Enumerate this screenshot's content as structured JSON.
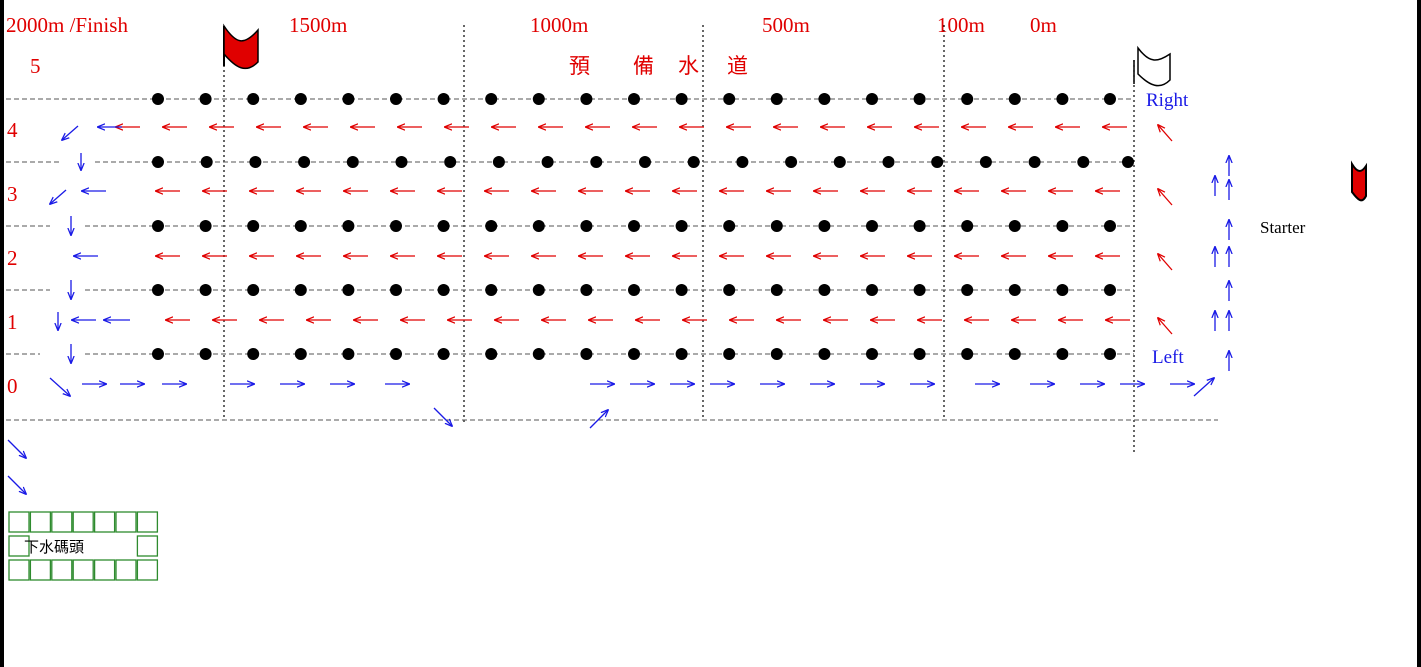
{
  "distance_markers": [
    "2000m /Finish",
    "1500m",
    "1000m",
    "500m",
    "100m",
    "0m"
  ],
  "lane5_label": "5",
  "reserve_lane_chars": [
    "預",
    "備",
    "水",
    "道"
  ],
  "lanes": [
    {
      "number": "4"
    },
    {
      "number": "3"
    },
    {
      "number": "2"
    },
    {
      "number": "1"
    },
    {
      "number": "0"
    }
  ],
  "side_labels": {
    "right": "Right",
    "left": "Left"
  },
  "starter_label": "Starter",
  "dock_label": "下水碼頭",
  "colors": {
    "red": "#e00000",
    "blue": "#1a1ae6",
    "buoy": "#000000",
    "dock_green": "#2e8b2e",
    "finish_flag": "#e00000",
    "start_flag": "#ffffff"
  }
}
